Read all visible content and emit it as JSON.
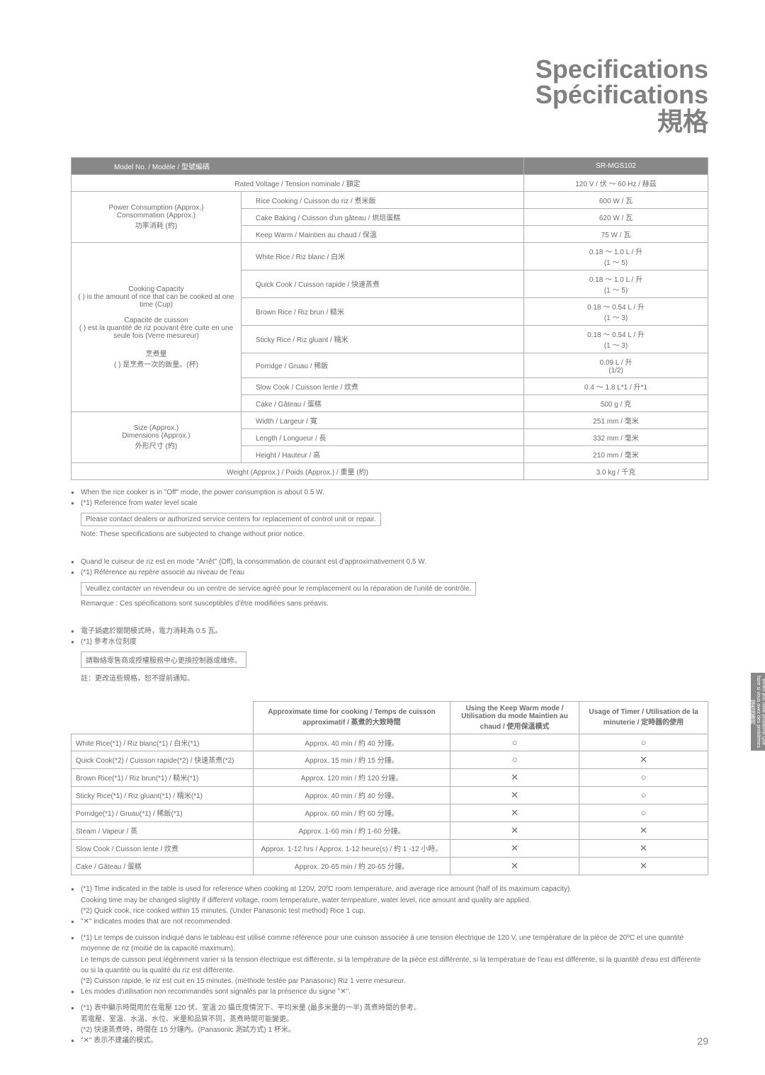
{
  "title": {
    "en": "Specifications",
    "fr": "Spécifications",
    "zh": "規格"
  },
  "specTable": {
    "header": {
      "modelLabel": "Model No. / Modèle / 型號編碼",
      "modelValue": "SR-MGS102"
    },
    "rows": [
      {
        "cat": "",
        "mid": "Rated Voltage / Tension nominale / 額定",
        "val": "120 V / 伏 ～ 60 Hz / 赫茲",
        "catSpan": 1,
        "catMerge": true
      },
      {
        "cat": "Power Consumption (Approx.)\nConsommation (Approx.)\n功率消耗 (約)",
        "mid": "Rice Cooking / Cuisson du riz / 煮米飯",
        "val": "600 W / 瓦",
        "catSpan": 3
      },
      {
        "mid": "Cake Baking / Cuisson d'un gâteau / 烘焙蛋糕",
        "val": "620 W / 瓦"
      },
      {
        "mid": "Keep Warm / Maintien au chaud / 保溫",
        "val": "75 W / 瓦"
      },
      {
        "cat": "Cooking Capacity\n( ) is the amount of rice that can be cooked at one time (Cup)\n\nCapacité de cuisson\n( ) est la quantité de riz pouvant être cuite en une seule fois (Verre mesureur)\n\n烹煮量\n( ) 是烹煮一次的飯量。(杯)",
        "mid": "White Rice / Riz blanc / 白米",
        "val": "0.18 ～ 1.0 L / 升\n(1 ～ 5)",
        "catSpan": 7
      },
      {
        "mid": "Quick Cook / Cuisson rapide / 快速蒸煮",
        "val": "0.18 ～ 1.0 L / 升\n(1 ～ 5)"
      },
      {
        "mid": "Brown Rice / Riz brun / 糙米",
        "val": "0.18 ～ 0.54 L / 升\n(1 ～ 3)"
      },
      {
        "mid": "Sticky Rice / Riz gluant / 糯米",
        "val": "0.18 ～ 0.54 L / 升\n(1 ～ 3)"
      },
      {
        "mid": "Porridge / Gruau / 稀飯",
        "val": "0.09 L / 升\n(1/2)"
      },
      {
        "mid": "Slow Cook / Cuisson lente / 炆煮",
        "val": "0.4 ～ 1.8 L*1 / 升*1"
      },
      {
        "mid": "Cake / Gâteau / 蛋糕",
        "val": "500 g / 克"
      },
      {
        "cat": "Size (Approx.)\nDimensions (Approx.)\n外形尺寸 (約)",
        "mid": "Width / Largeur / 寬",
        "val": "251 mm / 毫米",
        "catSpan": 3
      },
      {
        "mid": "Length / Longueur / 長",
        "val": "332 mm / 毫米"
      },
      {
        "mid": "Height / Hauteur / 高",
        "val": "210 mm / 毫米"
      },
      {
        "cat": "",
        "mid": "Weight (Approx.) / Poids (Approx.) / 重量 (約)",
        "val": "3.0 kg / 千克",
        "catMerge": true
      }
    ]
  },
  "notesEN": {
    "b1": "When the rice cooker is in \"Off\" mode, the power consumption is about 0.5 W.",
    "b2": "(*1) Reference from water level scale",
    "box": "Please contact dealers or authorized service centers for replacement of control unit or repair.",
    "sub": "Note: These specifications are subjected to change without prior notice."
  },
  "notesFR": {
    "b1": "Quand le cuiseur de riz est en mode \"Arrêt\" (Off), la consommation de courant est d'approximativement 0,5 W.",
    "b2": "(*1) Référence au repère associé au niveau de l'eau",
    "box": "Veuillez contacter un revendeur ou un centre de service agréé pour le remplacement ou la réparation de l'unité de contrôle.",
    "sub": "Remarque : Ces spécifications sont susceptibles d'être modifiées sans préavis."
  },
  "notesZH": {
    "b1": "電子鍋處於關閉模式時，電力消耗為 0.5 瓦。",
    "b2": "(*1) 參考水位刻度",
    "box": "請聯絡零售商或授權服務中心更換控制器或維修。",
    "sub": "註：更改這些規格，恕不提前通知。"
  },
  "timingTable": {
    "header": {
      "c1": "",
      "c2": "Approximate time for cooking / Temps de cuisson approximatif / 蒸煮的大致時間",
      "c3": "Using the Keep Warm mode / Utilisation du mode Maintien au chaud / 使用保溫模式",
      "c4": "Usage of Timer / Utilisation de la minuterie / 定時器的使用"
    },
    "rows": [
      {
        "name": "White Rice(*1) / Riz blanc(*1) / 白米(*1)",
        "time": "Approx. 40 min / 約 40 分鐘。",
        "kw": "○",
        "timer": "○"
      },
      {
        "name": "Quick Cook(*2) / Cuisson rapide(*2) / 快速蒸煮(*2)",
        "time": "Approx. 15 min / 約 15 分鐘。",
        "kw": "○",
        "timer": "✕"
      },
      {
        "name": "Brown Rice(*1) / Riz brun(*1) / 糙米(*1)",
        "time": "Approx. 120 min / 約 120 分鐘。",
        "kw": "✕",
        "timer": "○"
      },
      {
        "name": "Sticky Rice(*1) / Riz gluant(*1) / 糯米(*1)",
        "time": "Approx. 40 min / 約 40 分鐘。",
        "kw": "✕",
        "timer": "○"
      },
      {
        "name": "Porridge(*1) / Gruau(*1) / 稀飯(*1)",
        "time": "Approx. 60 min / 約 60 分鐘。",
        "kw": "✕",
        "timer": "○"
      },
      {
        "name": "Steam / Vapeur / 蒸",
        "time": "Approx. 1-60 min / 約 1-60 分鐘。",
        "kw": "✕",
        "timer": "✕"
      },
      {
        "name": "Slow Cook / Cuisson lente / 炆煮",
        "time": "Approx. 1-12 hrs / Approx. 1-12 heure(s) / 約 1 -12 小時。",
        "kw": "✕",
        "timer": "✕"
      },
      {
        "name": "Cake / Gâteau / 蛋糕",
        "time": "Approx. 20-65 min / 約 20-65 分鐘。",
        "kw": "✕",
        "timer": "✕"
      }
    ]
  },
  "footEN": {
    "l1": "(*1) Time indicated in the table is used for reference when cooking at 120V, 20ºC room temperature, and average rice amount (half of its maximum capacity).",
    "l2": "Cooking time may be changed slightly if different voltage, room temperature, water tempeature, water level, rice amount and quality are applied.",
    "l3": "(*2) Quick cook, rice cooked within 15 minutes. (Under Panasonic test method) Rice 1 cup.",
    "l4": "\"✕\" indicates modes that are not recommended."
  },
  "footFR": {
    "l1": "(*1) Le temps de cuisson indiqué dans le tableau est utilisé comme référence pour une cuisson associée à une tension électrique de 120 V, une température de la pièce de 20ºC et une quantité moyenne de riz (moitié de la capacité maximum).",
    "l2": "Le temps de cuisson peut légèrement varier si la tension électrique est différente, si la température de la pièce est différente, si la température de l'eau est différente, si la quantité d'eau est différente ou si la quantité ou la qualité du riz est différente.",
    "l3": "(*2) Cuisson rapide, le riz est cuit en 15 minutes. (méthode testée par Panasonic) Riz 1 verre mesureur.",
    "l4": "Les modes d'utilisation non recommandés sont signalés par la présence du signe \"✕\"."
  },
  "footZH": {
    "l1": "(*1) 表中顯示時間用於在電壓 120 伏、室溫 20 攝氏度情況下、平均米量 (最多米量的一半) 蒸煮時間的參考。",
    "l2": "若電壓、室溫、水溫、水位、米量和品質不同，蒸煮時間可能變更。",
    "l3": "(*2) 快速蒸煮時，時間在 15 分鐘內。(Panasonic 測試方式) 1 杯米。",
    "l4": "\"✕\" 表示不建議的模式。"
  },
  "sideTab": "When you have problems\nQue faire si vous avez des problèmes\n當有困難時",
  "pageNum": "29"
}
